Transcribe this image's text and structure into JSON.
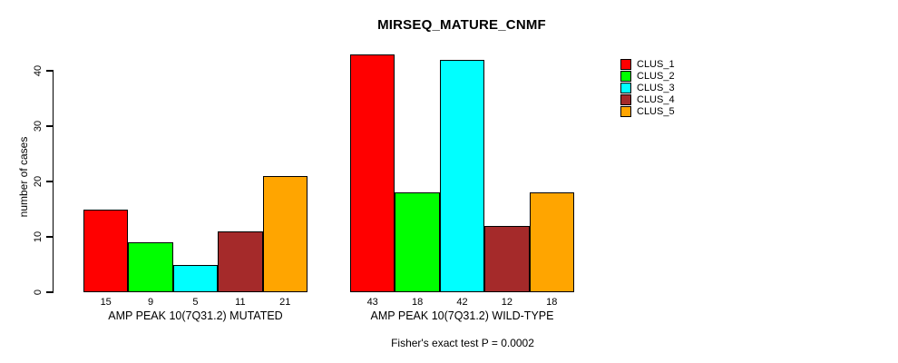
{
  "chart_data": {
    "type": "bar",
    "title": "MIRSEQ_MATURE_CNMF",
    "ylabel": "number of cases",
    "caption": "Fisher's exact test P = 0.0002",
    "ylim": [
      0,
      43
    ],
    "yticks": [
      0,
      10,
      20,
      30,
      40
    ],
    "grid": false,
    "legend_position": "right",
    "categories": [
      "AMP PEAK 10(7Q31.2) MUTATED",
      "AMP PEAK 10(7Q31.2) WILD-TYPE"
    ],
    "series": [
      {
        "name": "CLUS_1",
        "color": "#ff0000",
        "values": [
          15,
          43
        ]
      },
      {
        "name": "CLUS_2",
        "color": "#00ff00",
        "values": [
          9,
          18
        ]
      },
      {
        "name": "CLUS_3",
        "color": "#00ffff",
        "values": [
          5,
          42
        ]
      },
      {
        "name": "CLUS_4",
        "color": "#a52a2a",
        "values": [
          11,
          12
        ]
      },
      {
        "name": "CLUS_5",
        "color": "#ffa500",
        "values": [
          21,
          18
        ]
      }
    ]
  }
}
